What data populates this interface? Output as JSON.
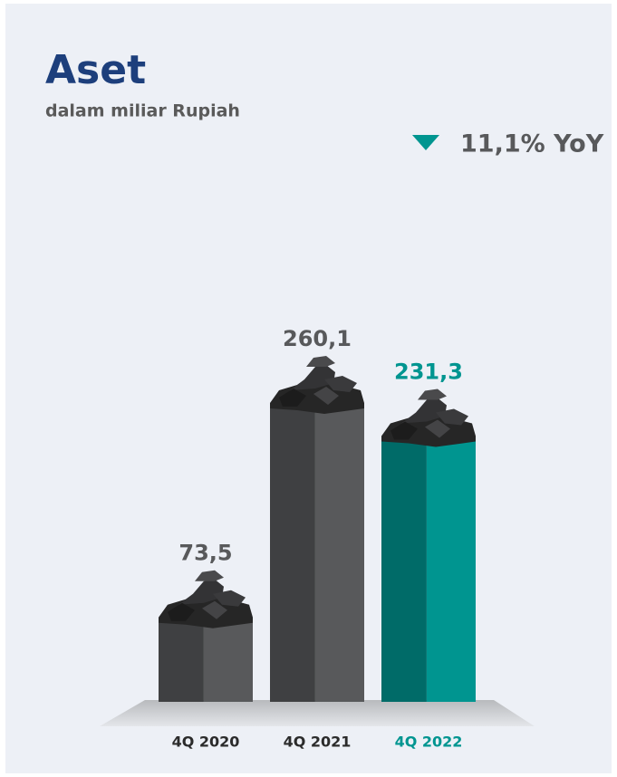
{
  "chart_data": {
    "type": "bar",
    "title": "Aset",
    "subtitle": "dalam miliar Rupiah",
    "annotation": "11,1% YoY",
    "categories": [
      "4Q 2020",
      "4Q 2021",
      "4Q 2022"
    ],
    "values": [
      73.5,
      260.1,
      231.3
    ],
    "value_labels": [
      "73,5",
      "260,1",
      "231,3"
    ],
    "colors": [
      "#58595b",
      "#58595b",
      "#009590"
    ]
  }
}
